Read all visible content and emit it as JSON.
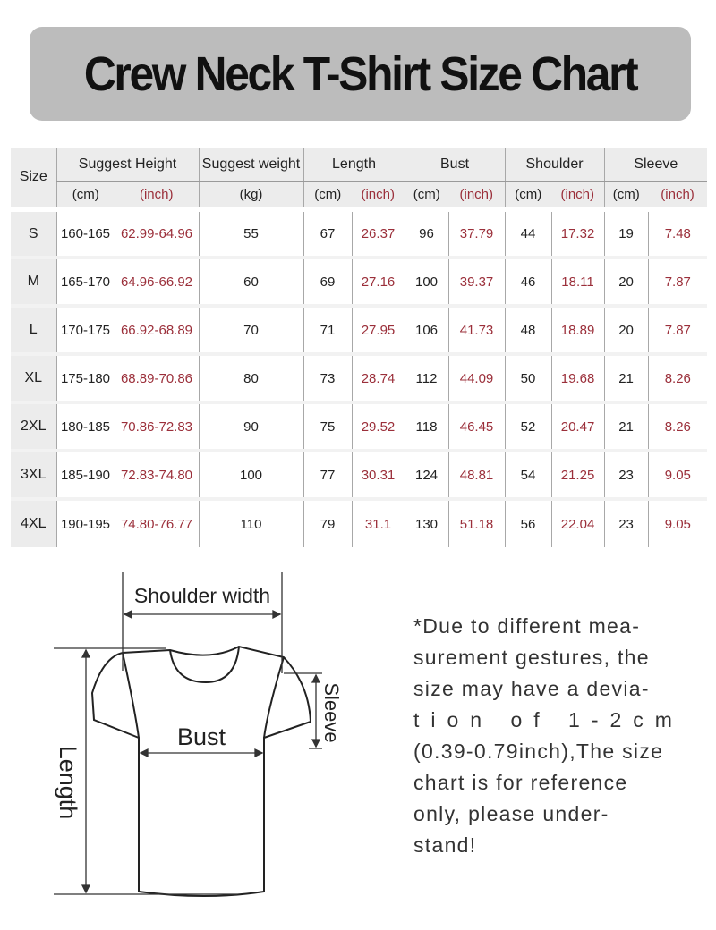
{
  "title": "Crew Neck T-Shirt Size Chart",
  "table": {
    "size_header": "Size",
    "groups": [
      {
        "label": "Suggest Height",
        "units": [
          "(cm)",
          "(inch)"
        ]
      },
      {
        "label": "Suggest weight",
        "units": [
          "(kg)"
        ]
      },
      {
        "label": "Length",
        "units": [
          "(cm)",
          "(inch)"
        ]
      },
      {
        "label": "Bust",
        "units": [
          "(cm)",
          "(inch)"
        ]
      },
      {
        "label": "Shoulder",
        "units": [
          "(cm)",
          "(inch)"
        ]
      },
      {
        "label": "Sleeve",
        "units": [
          "(cm)",
          "(inch)"
        ]
      }
    ],
    "rows": [
      [
        "S",
        "160-165",
        "62.99-64.96",
        "55",
        "67",
        "26.37",
        "96",
        "37.79",
        "44",
        "17.32",
        "19",
        "7.48"
      ],
      [
        "M",
        "165-170",
        "64.96-66.92",
        "60",
        "69",
        "27.16",
        "100",
        "39.37",
        "46",
        "18.11",
        "20",
        "7.87"
      ],
      [
        "L",
        "170-175",
        "66.92-68.89",
        "70",
        "71",
        "27.95",
        "106",
        "41.73",
        "48",
        "18.89",
        "20",
        "7.87"
      ],
      [
        "XL",
        "175-180",
        "68.89-70.86",
        "80",
        "73",
        "28.74",
        "112",
        "44.09",
        "50",
        "19.68",
        "21",
        "8.26"
      ],
      [
        "2XL",
        "180-185",
        "70.86-72.83",
        "90",
        "75",
        "29.52",
        "118",
        "46.45",
        "52",
        "20.47",
        "21",
        "8.26"
      ],
      [
        "3XL",
        "185-190",
        "72.83-74.80",
        "100",
        "77",
        "30.31",
        "124",
        "48.81",
        "54",
        "21.25",
        "23",
        "9.05"
      ],
      [
        "4XL",
        "190-195",
        "74.80-76.77",
        "110",
        "79",
        "31.1",
        "130",
        "51.18",
        "56",
        "22.04",
        "23",
        "9.05"
      ]
    ]
  },
  "diagram": {
    "shoulder_label": "Shoulder width",
    "bust_label": "Bust",
    "length_label": "Length",
    "sleeve_label": "Sleeve"
  },
  "note_lines": [
    "*Due to different mea-",
    "surement gestures, the",
    "size may have a devia-",
    "tion of 1-2cm",
    "(0.39-0.79inch),The size",
    "chart is for reference",
    "only, please under-",
    "stand!"
  ],
  "colors": {
    "banner": "#bcbcbc",
    "inch_text": "#9b2f3a",
    "header_bg": "#ececec"
  }
}
